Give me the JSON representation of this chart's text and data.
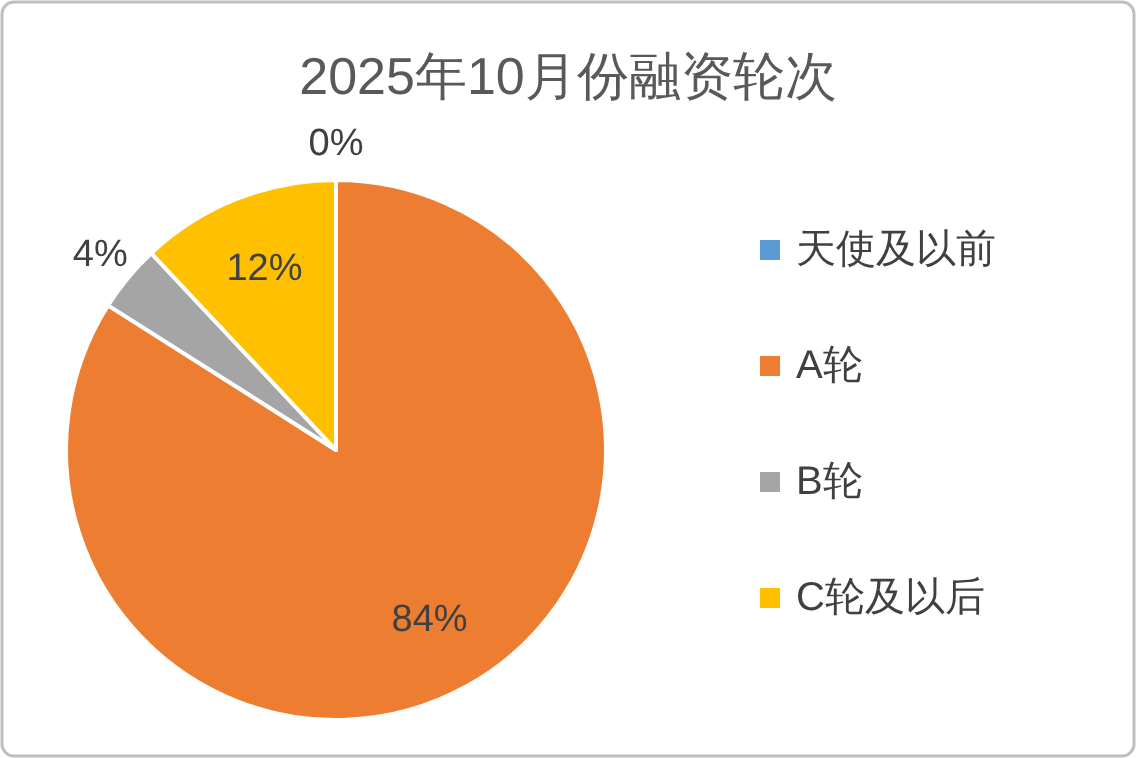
{
  "chart_data": {
    "type": "pie",
    "title": "2025年10月份融资轮次",
    "categories": [
      "天使及以前",
      "A轮",
      "B轮",
      "C轮及以后"
    ],
    "values": [
      0,
      84,
      4,
      12
    ],
    "colors": [
      "#5b9bd5",
      "#ed7d31",
      "#a5a5a5",
      "#ffc000"
    ],
    "value_labels": [
      "0%",
      "84%",
      "4%",
      "12%"
    ],
    "legend": "right"
  }
}
